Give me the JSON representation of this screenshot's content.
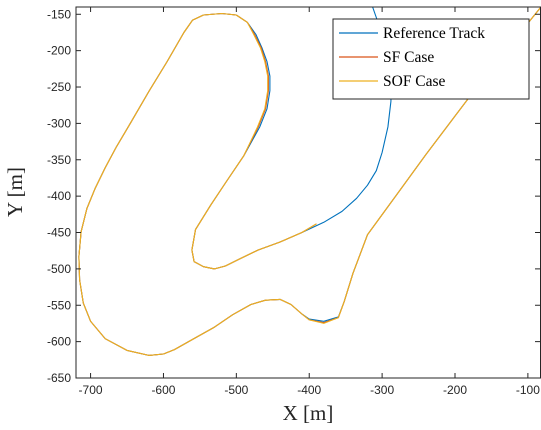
{
  "chart_data": {
    "type": "line",
    "title": "",
    "xlabel": "X [m]",
    "ylabel": "Y [m]",
    "xlim": [
      -720,
      -82
    ],
    "ylim": [
      -650,
      -140
    ],
    "x_ticks": [
      -700,
      -600,
      -500,
      -400,
      -300,
      -200,
      -100
    ],
    "y_ticks": [
      -150,
      -200,
      -250,
      -300,
      -350,
      -400,
      -450,
      -500,
      -550,
      -600,
      -650
    ],
    "grid": false,
    "legend_position": "top-right",
    "colors": {
      "reference": "#0072bd",
      "sf": "#d95319",
      "sof": "#edb120",
      "axis": "#262626"
    },
    "series": [
      {
        "name": "Reference Track",
        "outer": [
          [
            -82,
            -140
          ],
          [
            -120,
            -187
          ],
          [
            -160,
            -237
          ],
          [
            -200,
            -290
          ],
          [
            -240,
            -343
          ],
          [
            -280,
            -398
          ],
          [
            -320,
            -453
          ],
          [
            -340,
            -506
          ],
          [
            -352,
            -545
          ],
          [
            -360,
            -566
          ],
          [
            -380,
            -572
          ],
          [
            -400,
            -569
          ],
          [
            -410,
            -562
          ],
          [
            -425,
            -549
          ],
          [
            -440,
            -542
          ],
          [
            -460,
            -543
          ],
          [
            -480,
            -549
          ],
          [
            -505,
            -563
          ],
          [
            -530,
            -580
          ],
          [
            -560,
            -597
          ],
          [
            -585,
            -611
          ],
          [
            -600,
            -617
          ],
          [
            -620,
            -619
          ],
          [
            -650,
            -612
          ],
          [
            -680,
            -596
          ],
          [
            -700,
            -572
          ],
          [
            -710,
            -547
          ],
          [
            -715,
            -515
          ],
          [
            -716,
            -483
          ],
          [
            -713,
            -449
          ],
          [
            -705,
            -417
          ],
          [
            -694,
            -390
          ],
          [
            -680,
            -361
          ],
          [
            -665,
            -333
          ],
          [
            -645,
            -299
          ],
          [
            -620,
            -256
          ],
          [
            -595,
            -215
          ],
          [
            -572,
            -175
          ],
          [
            -560,
            -158
          ],
          [
            -545,
            -151
          ],
          [
            -520,
            -149
          ],
          [
            -500,
            -151
          ],
          [
            -485,
            -161
          ],
          [
            -473,
            -178
          ],
          [
            -465,
            -196
          ],
          [
            -458,
            -215
          ],
          [
            -454,
            -235
          ],
          [
            -454,
            -255
          ],
          [
            -458,
            -280
          ],
          [
            -468,
            -305
          ],
          [
            -490,
            -345
          ],
          [
            -515,
            -382
          ],
          [
            -535,
            -412
          ],
          [
            -556,
            -446
          ],
          [
            -561,
            -474
          ],
          [
            -558,
            -490
          ],
          [
            -545,
            -497
          ],
          [
            -530,
            -500
          ],
          [
            -515,
            -496
          ],
          [
            -495,
            -486
          ],
          [
            -470,
            -474
          ],
          [
            -440,
            -463
          ],
          [
            -410,
            -450
          ],
          [
            -380,
            -436
          ],
          [
            -355,
            -421
          ],
          [
            -335,
            -403
          ],
          [
            -320,
            -385
          ],
          [
            -308,
            -365
          ],
          [
            -300,
            -340
          ],
          [
            -292,
            -305
          ],
          [
            -288,
            -270
          ],
          [
            -287,
            -240
          ],
          [
            -289,
            -210
          ],
          [
            -297,
            -180
          ],
          [
            -306,
            -160
          ],
          [
            -313,
            -140
          ]
        ]
      },
      {
        "name": "SF Case",
        "outer": [
          [
            -82,
            -140
          ],
          [
            -120,
            -187
          ],
          [
            -160,
            -237
          ],
          [
            -200,
            -290
          ],
          [
            -240,
            -343
          ],
          [
            -280,
            -398
          ],
          [
            -320,
            -453
          ],
          [
            -340,
            -506
          ],
          [
            -352,
            -545
          ],
          [
            -360,
            -567
          ],
          [
            -380,
            -574
          ],
          [
            -400,
            -570
          ],
          [
            -410,
            -562
          ],
          [
            -425,
            -549
          ],
          [
            -440,
            -542
          ],
          [
            -460,
            -543
          ],
          [
            -480,
            -549
          ],
          [
            -505,
            -563
          ],
          [
            -530,
            -580
          ],
          [
            -560,
            -597
          ],
          [
            -585,
            -611
          ],
          [
            -600,
            -617
          ],
          [
            -620,
            -619
          ],
          [
            -650,
            -612
          ],
          [
            -680,
            -596
          ],
          [
            -700,
            -572
          ],
          [
            -710,
            -547
          ],
          [
            -715,
            -515
          ],
          [
            -716,
            -483
          ],
          [
            -713,
            -449
          ],
          [
            -705,
            -417
          ],
          [
            -694,
            -390
          ],
          [
            -680,
            -361
          ],
          [
            -665,
            -333
          ],
          [
            -645,
            -299
          ],
          [
            -620,
            -256
          ],
          [
            -595,
            -215
          ],
          [
            -572,
            -175
          ],
          [
            -560,
            -158
          ],
          [
            -545,
            -151
          ],
          [
            -520,
            -149
          ],
          [
            -500,
            -151
          ],
          [
            -485,
            -161
          ],
          [
            -475,
            -178
          ],
          [
            -466,
            -196
          ],
          [
            -460,
            -215
          ],
          [
            -456,
            -235
          ],
          [
            -456,
            -255
          ],
          [
            -460,
            -280
          ],
          [
            -470,
            -305
          ],
          [
            -490,
            -345
          ],
          [
            -515,
            -382
          ],
          [
            -535,
            -412
          ],
          [
            -556,
            -446
          ],
          [
            -561,
            -474
          ],
          [
            -558,
            -490
          ],
          [
            -545,
            -497
          ],
          [
            -530,
            -500
          ],
          [
            -515,
            -496
          ],
          [
            -495,
            -486
          ],
          [
            -470,
            -474
          ],
          [
            -440,
            -463
          ],
          [
            -410,
            -450
          ],
          [
            -390,
            -438
          ]
        ]
      },
      {
        "name": "SOF Case",
        "outer": [
          [
            -82,
            -140
          ],
          [
            -120,
            -187
          ],
          [
            -160,
            -237
          ],
          [
            -200,
            -290
          ],
          [
            -240,
            -343
          ],
          [
            -280,
            -398
          ],
          [
            -320,
            -453
          ],
          [
            -340,
            -506
          ],
          [
            -352,
            -545
          ],
          [
            -360,
            -567
          ],
          [
            -380,
            -575
          ],
          [
            -400,
            -570
          ],
          [
            -410,
            -562
          ],
          [
            -425,
            -549
          ],
          [
            -440,
            -542
          ],
          [
            -460,
            -543
          ],
          [
            -480,
            -549
          ],
          [
            -505,
            -563
          ],
          [
            -530,
            -580
          ],
          [
            -560,
            -597
          ],
          [
            -585,
            -611
          ],
          [
            -600,
            -617
          ],
          [
            -620,
            -619
          ],
          [
            -650,
            -612
          ],
          [
            -680,
            -596
          ],
          [
            -700,
            -572
          ],
          [
            -710,
            -547
          ],
          [
            -715,
            -515
          ],
          [
            -716,
            -483
          ],
          [
            -713,
            -449
          ],
          [
            -705,
            -417
          ],
          [
            -694,
            -390
          ],
          [
            -680,
            -361
          ],
          [
            -665,
            -333
          ],
          [
            -645,
            -299
          ],
          [
            -620,
            -256
          ],
          [
            -595,
            -215
          ],
          [
            -572,
            -175
          ],
          [
            -560,
            -158
          ],
          [
            -545,
            -151
          ],
          [
            -520,
            -149
          ],
          [
            -500,
            -151
          ],
          [
            -485,
            -161
          ],
          [
            -476,
            -178
          ],
          [
            -467,
            -196
          ],
          [
            -461,
            -215
          ],
          [
            -457,
            -235
          ],
          [
            -457,
            -255
          ],
          [
            -461,
            -280
          ],
          [
            -471,
            -305
          ],
          [
            -490,
            -345
          ],
          [
            -515,
            -382
          ],
          [
            -535,
            -412
          ],
          [
            -556,
            -446
          ],
          [
            -561,
            -474
          ],
          [
            -558,
            -490
          ],
          [
            -545,
            -497
          ],
          [
            -530,
            -500
          ],
          [
            -515,
            -496
          ],
          [
            -495,
            -486
          ],
          [
            -470,
            -474
          ],
          [
            -440,
            -463
          ],
          [
            -410,
            -450
          ],
          [
            -390,
            -438
          ]
        ]
      }
    ]
  }
}
